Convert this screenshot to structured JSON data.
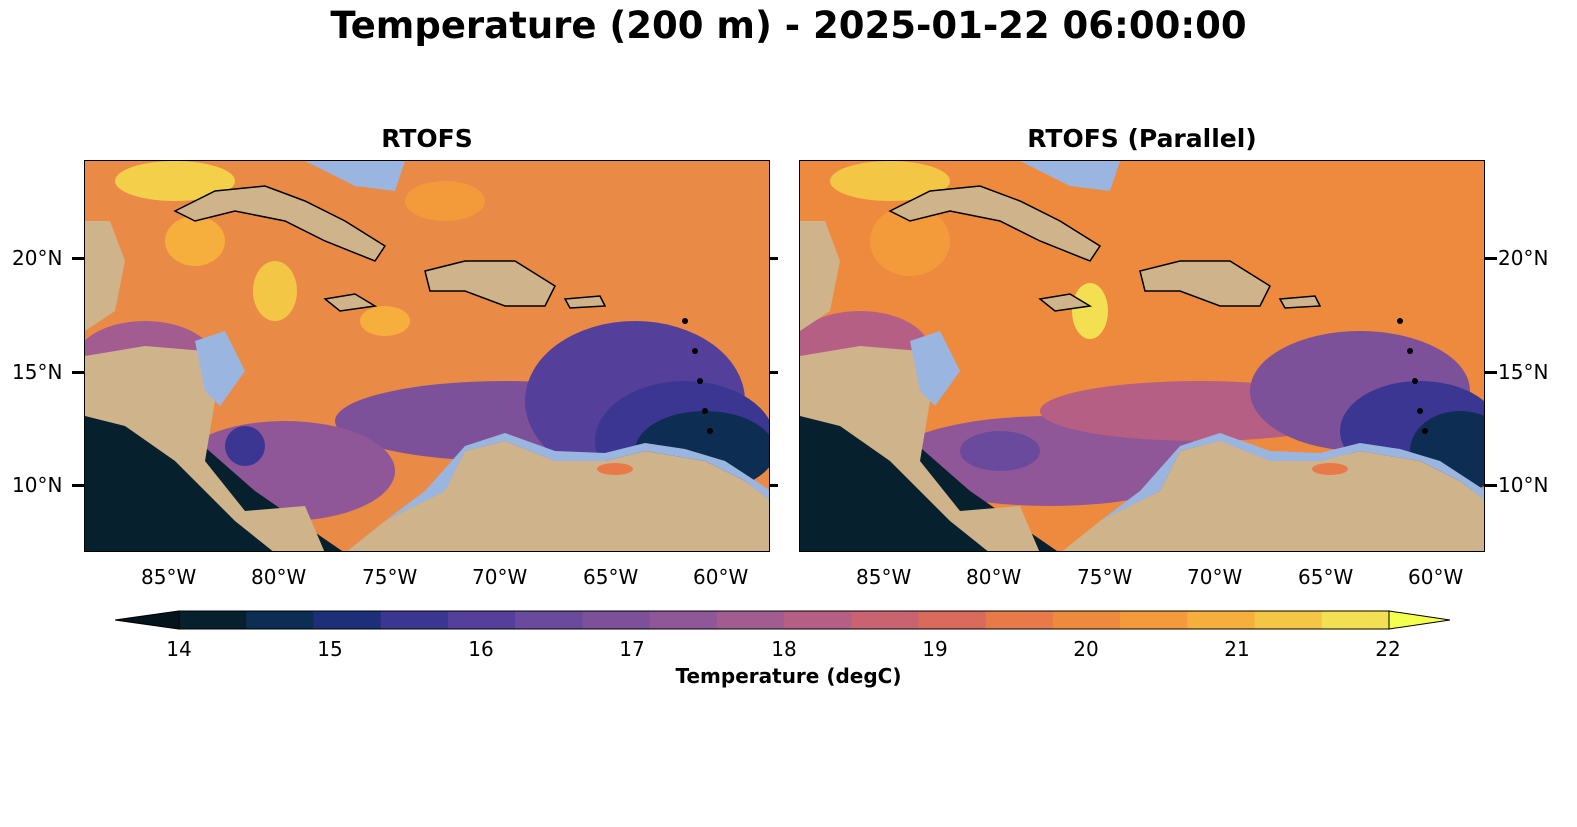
{
  "figure": {
    "title": "Temperature (200 m) - 2025-01-22 06:00:00"
  },
  "panels": [
    {
      "title": "RTOFS"
    },
    {
      "title": "RTOFS (Parallel)"
    }
  ],
  "axes": {
    "lon_labels": [
      "85°W",
      "80°W",
      "75°W",
      "70°W",
      "65°W",
      "60°W"
    ],
    "lat_labels": [
      "20°N",
      "15°N",
      "10°N"
    ]
  },
  "colorbar": {
    "label": "Temperature (degC)",
    "ticks": [
      "14",
      "15",
      "16",
      "17",
      "18",
      "19",
      "20",
      "21",
      "22"
    ],
    "range": [
      14,
      22
    ],
    "extend": "both",
    "colors": [
      "#06202e",
      "#0e2d52",
      "#1e2f7a",
      "#3a3692",
      "#54409a",
      "#6a4a9c",
      "#7c519a",
      "#8f5798",
      "#a25c90",
      "#b55f84",
      "#c8636f",
      "#d96a5c",
      "#e77a48",
      "#ee8a3e",
      "#f39b3b",
      "#f6ae3c",
      "#f4c646",
      "#f2e052"
    ],
    "under_color": "#03141d",
    "over_color": "#f5ff4d"
  },
  "map_colors": {
    "land": "#cfb38b",
    "shelf_water": "#9ab6e0",
    "deep_cold": "#06202e"
  }
}
